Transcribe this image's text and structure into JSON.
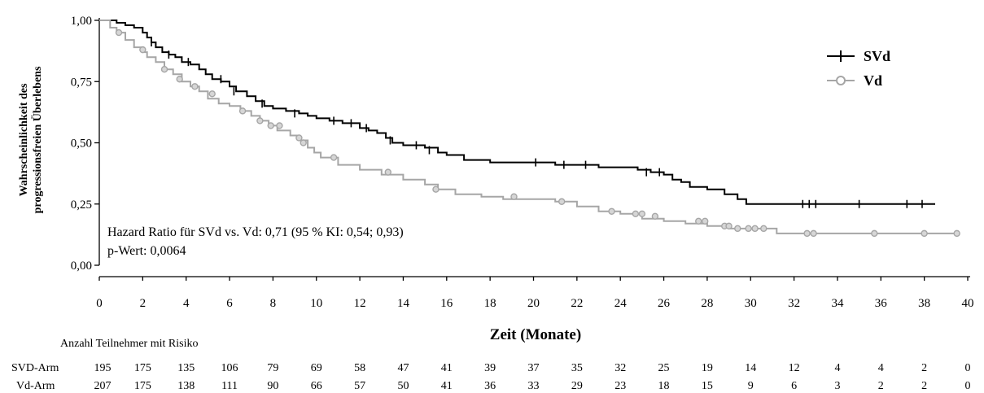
{
  "chart_data": {
    "type": "line",
    "subtype": "kaplan-meier",
    "xlabel": "Zeit (Monate)",
    "ylabel_line1": "Wahrscheinlichkeit des",
    "ylabel_line2": "progressionsfreien Überlebens",
    "xlim": [
      0,
      40
    ],
    "ylim": [
      0,
      1
    ],
    "xticks": [
      0,
      2,
      4,
      6,
      8,
      10,
      12,
      14,
      16,
      18,
      20,
      22,
      24,
      26,
      28,
      30,
      32,
      34,
      36,
      38,
      40
    ],
    "xtick_labels": [
      "0",
      "2",
      "4",
      "6",
      "8",
      "10",
      "12",
      "14",
      "16",
      "18",
      "20",
      "22",
      "24",
      "26",
      "28",
      "30",
      "32",
      "34",
      "36",
      "38",
      "40"
    ],
    "yticks": [
      0,
      0.25,
      0.5,
      0.75,
      1.0
    ],
    "ytick_labels": [
      "0,00",
      "0,25",
      "0,50",
      "0,75",
      "1,00"
    ],
    "grid": false,
    "legend_position": "top-right",
    "annotation_line1": "Hazard Ratio für SVd vs. Vd: 0,71 (95 % KI: 0,54; 0,93)",
    "annotation_line2": "p-Wert: 0,0064",
    "series": [
      {
        "name": "SVd",
        "color": "#000000",
        "censor_marker": "plus",
        "x": [
          0,
          0.8,
          1.2,
          1.6,
          2.0,
          2.2,
          2.4,
          2.6,
          2.9,
          3.2,
          3.5,
          3.8,
          4.2,
          4.6,
          4.9,
          5.2,
          5.6,
          6.0,
          6.3,
          6.8,
          7.2,
          7.6,
          8.0,
          8.6,
          9.2,
          9.6,
          10.0,
          10.6,
          11.2,
          12.0,
          12.4,
          12.8,
          13.2,
          13.5,
          14.0,
          15.0,
          15.6,
          16.0,
          16.8,
          18.0,
          21.0,
          23.0,
          24.8,
          25.4,
          26.0,
          26.4,
          26.8,
          27.2,
          28.0,
          28.8,
          29.4,
          29.8,
          38.5
        ],
        "y": [
          1.0,
          0.99,
          0.98,
          0.97,
          0.95,
          0.93,
          0.91,
          0.89,
          0.87,
          0.86,
          0.85,
          0.83,
          0.82,
          0.8,
          0.78,
          0.76,
          0.75,
          0.73,
          0.71,
          0.69,
          0.67,
          0.65,
          0.64,
          0.63,
          0.62,
          0.61,
          0.6,
          0.59,
          0.58,
          0.56,
          0.55,
          0.54,
          0.52,
          0.5,
          0.49,
          0.48,
          0.46,
          0.45,
          0.43,
          0.42,
          0.41,
          0.4,
          0.39,
          0.38,
          0.37,
          0.35,
          0.34,
          0.32,
          0.31,
          0.29,
          0.27,
          0.25,
          0.25
        ],
        "censored_x": [
          2.4,
          3.2,
          4.1,
          5.6,
          6.2,
          7.5,
          9.0,
          10.8,
          11.6,
          12.3,
          13.4,
          14.6,
          15.2,
          20.1,
          21.4,
          22.4,
          25.2,
          25.8,
          32.4,
          32.7,
          33.0,
          35.0,
          37.2,
          37.9
        ],
        "censored_y": [
          0.91,
          0.86,
          0.83,
          0.76,
          0.71,
          0.66,
          0.62,
          0.59,
          0.58,
          0.56,
          0.51,
          0.49,
          0.47,
          0.42,
          0.41,
          0.41,
          0.38,
          0.38,
          0.25,
          0.25,
          0.25,
          0.25,
          0.25,
          0.25
        ],
        "at_risk": [
          195,
          175,
          135,
          106,
          79,
          69,
          58,
          47,
          41,
          39,
          37,
          35,
          32,
          25,
          19,
          14,
          12,
          4,
          4,
          2,
          0
        ],
        "at_risk_label": "SVD-Arm"
      },
      {
        "name": "Vd",
        "color": "#a6a6a6",
        "censor_marker": "circle",
        "x": [
          0,
          0.5,
          0.8,
          1.2,
          1.6,
          2.0,
          2.2,
          2.6,
          3.0,
          3.4,
          3.8,
          4.2,
          4.6,
          5.0,
          5.5,
          6.0,
          6.5,
          7.0,
          7.4,
          7.8,
          8.2,
          8.8,
          9.2,
          9.6,
          9.9,
          10.2,
          11.0,
          12.0,
          13.0,
          14.0,
          15.0,
          15.6,
          16.4,
          17.6,
          18.6,
          21.0,
          22.0,
          23.0,
          24.0,
          25.0,
          26.0,
          27.0,
          28.0,
          29.0,
          31.2,
          39.5
        ],
        "y": [
          1.0,
          0.97,
          0.95,
          0.92,
          0.89,
          0.87,
          0.85,
          0.83,
          0.8,
          0.78,
          0.75,
          0.73,
          0.71,
          0.68,
          0.66,
          0.65,
          0.63,
          0.61,
          0.59,
          0.57,
          0.55,
          0.53,
          0.51,
          0.48,
          0.46,
          0.44,
          0.41,
          0.39,
          0.37,
          0.35,
          0.33,
          0.31,
          0.29,
          0.28,
          0.27,
          0.26,
          0.24,
          0.22,
          0.21,
          0.19,
          0.18,
          0.17,
          0.16,
          0.15,
          0.13,
          0.13
        ],
        "censored_x": [
          0.9,
          2.0,
          3.0,
          3.7,
          4.4,
          5.2,
          6.6,
          7.4,
          7.9,
          8.3,
          9.2,
          9.4,
          10.8,
          13.3,
          15.5,
          19.1,
          21.3,
          23.6,
          24.7,
          25.0,
          25.6,
          27.6,
          27.9,
          28.8,
          29.0,
          29.4,
          29.9,
          30.2,
          30.6,
          32.6,
          32.9,
          35.7,
          38.0,
          39.5
        ],
        "censored_y": [
          0.95,
          0.88,
          0.8,
          0.76,
          0.73,
          0.7,
          0.63,
          0.59,
          0.57,
          0.57,
          0.52,
          0.5,
          0.44,
          0.38,
          0.31,
          0.28,
          0.26,
          0.22,
          0.21,
          0.21,
          0.2,
          0.18,
          0.18,
          0.16,
          0.16,
          0.15,
          0.15,
          0.15,
          0.15,
          0.13,
          0.13,
          0.13,
          0.13,
          0.13
        ],
        "at_risk": [
          207,
          175,
          138,
          111,
          90,
          66,
          57,
          50,
          41,
          36,
          33,
          29,
          23,
          18,
          15,
          9,
          6,
          3,
          2,
          2,
          0
        ],
        "at_risk_label": "Vd-Arm"
      }
    ]
  },
  "risk_table": {
    "title": "Anzahl Teilnehmer mit Risiko"
  }
}
